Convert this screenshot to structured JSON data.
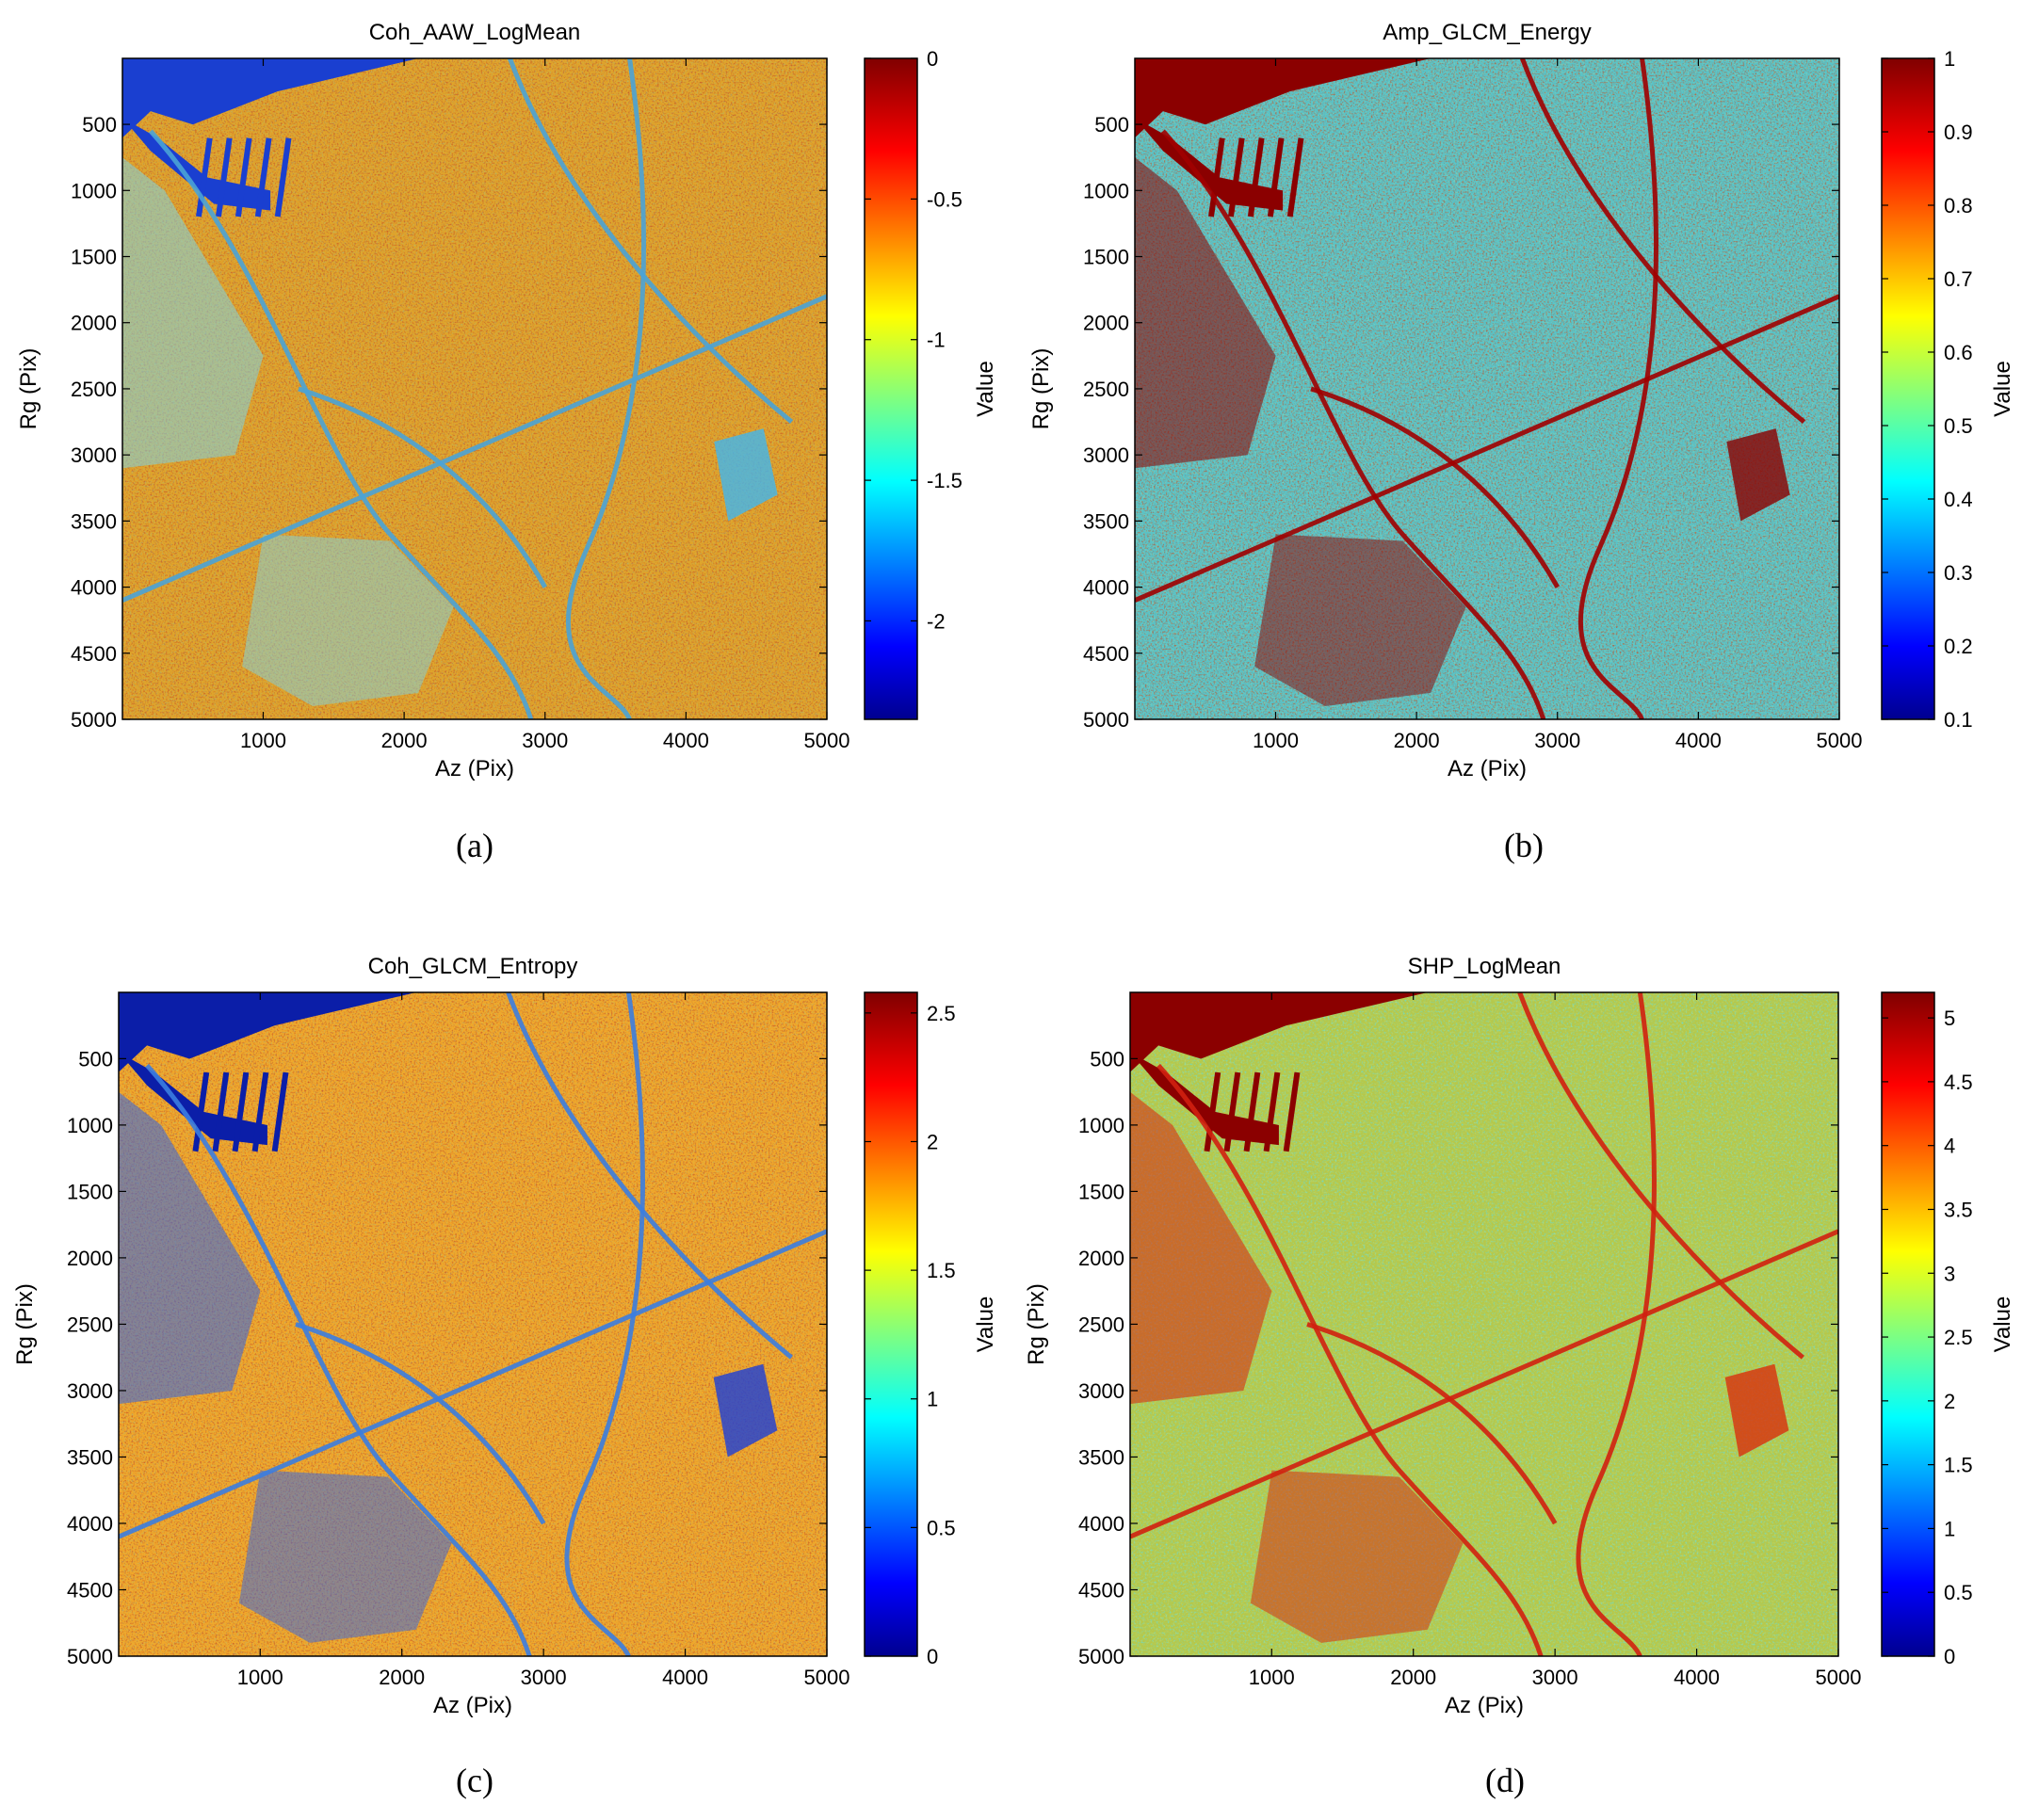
{
  "panels": [
    {
      "id": "a",
      "caption": "(a)",
      "title": "Coh_AAW_LogMean",
      "xlabel": "Az (Pix)",
      "ylabel": "Rg (Pix)",
      "colorbar_label": "Value",
      "x_ticks": [
        "1000",
        "2000",
        "3000",
        "4000",
        "5000"
      ],
      "y_ticks": [
        "500",
        "1000",
        "1500",
        "2000",
        "2500",
        "3000",
        "3500",
        "4000",
        "4500",
        "5000"
      ],
      "cbar_ticks": [
        "0",
        "-0.5",
        "-1",
        "-1.5",
        "-2"
      ],
      "cbar_range": [
        -2.35,
        0
      ],
      "style": "coh"
    },
    {
      "id": "b",
      "caption": "(b)",
      "title": "Amp_GLCM_Energy",
      "xlabel": "Az (Pix)",
      "ylabel": "Rg (Pix)",
      "colorbar_label": "Value",
      "x_ticks": [
        "1000",
        "2000",
        "3000",
        "4000",
        "5000"
      ],
      "y_ticks": [
        "500",
        "1000",
        "1500",
        "2000",
        "2500",
        "3000",
        "3500",
        "4000",
        "4500",
        "5000"
      ],
      "cbar_ticks": [
        "1",
        "0.9",
        "0.8",
        "0.7",
        "0.6",
        "0.5",
        "0.4",
        "0.3",
        "0.2",
        "0.1"
      ],
      "cbar_range": [
        0.1,
        1
      ],
      "style": "energy"
    },
    {
      "id": "c",
      "caption": "(c)",
      "title": "Coh_GLCM_Entropy",
      "xlabel": "Az (Pix)",
      "ylabel": "Rg (Pix)",
      "colorbar_label": "Value",
      "x_ticks": [
        "1000",
        "2000",
        "3000",
        "4000",
        "5000"
      ],
      "y_ticks": [
        "500",
        "1000",
        "1500",
        "2000",
        "2500",
        "3000",
        "3500",
        "4000",
        "4500",
        "5000"
      ],
      "cbar_ticks": [
        "2.5",
        "2",
        "1.5",
        "1",
        "0.5",
        "0"
      ],
      "cbar_range": [
        0,
        2.58
      ],
      "style": "entropy"
    },
    {
      "id": "d",
      "caption": "(d)",
      "title": "SHP_LogMean",
      "xlabel": "Az (Pix)",
      "ylabel": "Rg (Pix)",
      "colorbar_label": "Value",
      "x_ticks": [
        "1000",
        "2000",
        "3000",
        "4000",
        "5000"
      ],
      "y_ticks": [
        "500",
        "1000",
        "1500",
        "2000",
        "2500",
        "3000",
        "3500",
        "4000",
        "4500",
        "5000"
      ],
      "cbar_ticks": [
        "5",
        "4.5",
        "4",
        "3.5",
        "3",
        "2.5",
        "2",
        "1.5",
        "1",
        "0.5",
        "0"
      ],
      "cbar_range": [
        0,
        5.2
      ],
      "style": "shp"
    }
  ],
  "chart_data": [
    {
      "type": "heatmap",
      "title": "Coh_AAW_LogMean",
      "xlabel": "Az (Pix)",
      "ylabel": "Rg (Pix)",
      "xlim": [
        1,
        5000
      ],
      "ylim": [
        5000,
        1
      ],
      "x_ticks": [
        1000,
        2000,
        3000,
        4000,
        5000
      ],
      "y_ticks": [
        500,
        1000,
        1500,
        2000,
        2500,
        3000,
        3500,
        4000,
        4500,
        5000
      ],
      "colorbar": {
        "label": "Value",
        "range": [
          -2.35,
          0
        ],
        "ticks": [
          0,
          -0.5,
          -1,
          -1.5,
          -2
        ],
        "colormap": "jet"
      }
    },
    {
      "type": "heatmap",
      "title": "Amp_GLCM_Energy",
      "xlabel": "Az (Pix)",
      "ylabel": "Rg (Pix)",
      "xlim": [
        1,
        5000
      ],
      "ylim": [
        5000,
        1
      ],
      "x_ticks": [
        1000,
        2000,
        3000,
        4000,
        5000
      ],
      "y_ticks": [
        500,
        1000,
        1500,
        2000,
        2500,
        3000,
        3500,
        4000,
        4500,
        5000
      ],
      "colorbar": {
        "label": "Value",
        "range": [
          0.1,
          1
        ],
        "ticks": [
          1,
          0.9,
          0.8,
          0.7,
          0.6,
          0.5,
          0.4,
          0.3,
          0.2,
          0.1
        ],
        "colormap": "jet"
      }
    },
    {
      "type": "heatmap",
      "title": "Coh_GLCM_Entropy",
      "xlabel": "Az (Pix)",
      "ylabel": "Rg (Pix)",
      "xlim": [
        1,
        5000
      ],
      "ylim": [
        5000,
        1
      ],
      "x_ticks": [
        1000,
        2000,
        3000,
        4000,
        5000
      ],
      "y_ticks": [
        500,
        1000,
        1500,
        2000,
        2500,
        3000,
        3500,
        4000,
        4500,
        5000
      ],
      "colorbar": {
        "label": "Value",
        "range": [
          0,
          2.58
        ],
        "ticks": [
          2.5,
          2,
          1.5,
          1,
          0.5,
          0
        ],
        "colormap": "jet"
      }
    },
    {
      "type": "heatmap",
      "title": "SHP_LogMean",
      "xlabel": "Az (Pix)",
      "ylabel": "Rg (Pix)",
      "xlim": [
        1,
        5000
      ],
      "ylim": [
        5000,
        1
      ],
      "x_ticks": [
        1000,
        2000,
        3000,
        4000,
        5000
      ],
      "y_ticks": [
        500,
        1000,
        1500,
        2000,
        2500,
        3000,
        3500,
        4000,
        4500,
        5000
      ],
      "colorbar": {
        "label": "Value",
        "range": [
          0,
          5.2
        ],
        "ticks": [
          5,
          4.5,
          4,
          3.5,
          3,
          2.5,
          2,
          1.5,
          1,
          0.5,
          0
        ],
        "colormap": "jet"
      }
    }
  ]
}
